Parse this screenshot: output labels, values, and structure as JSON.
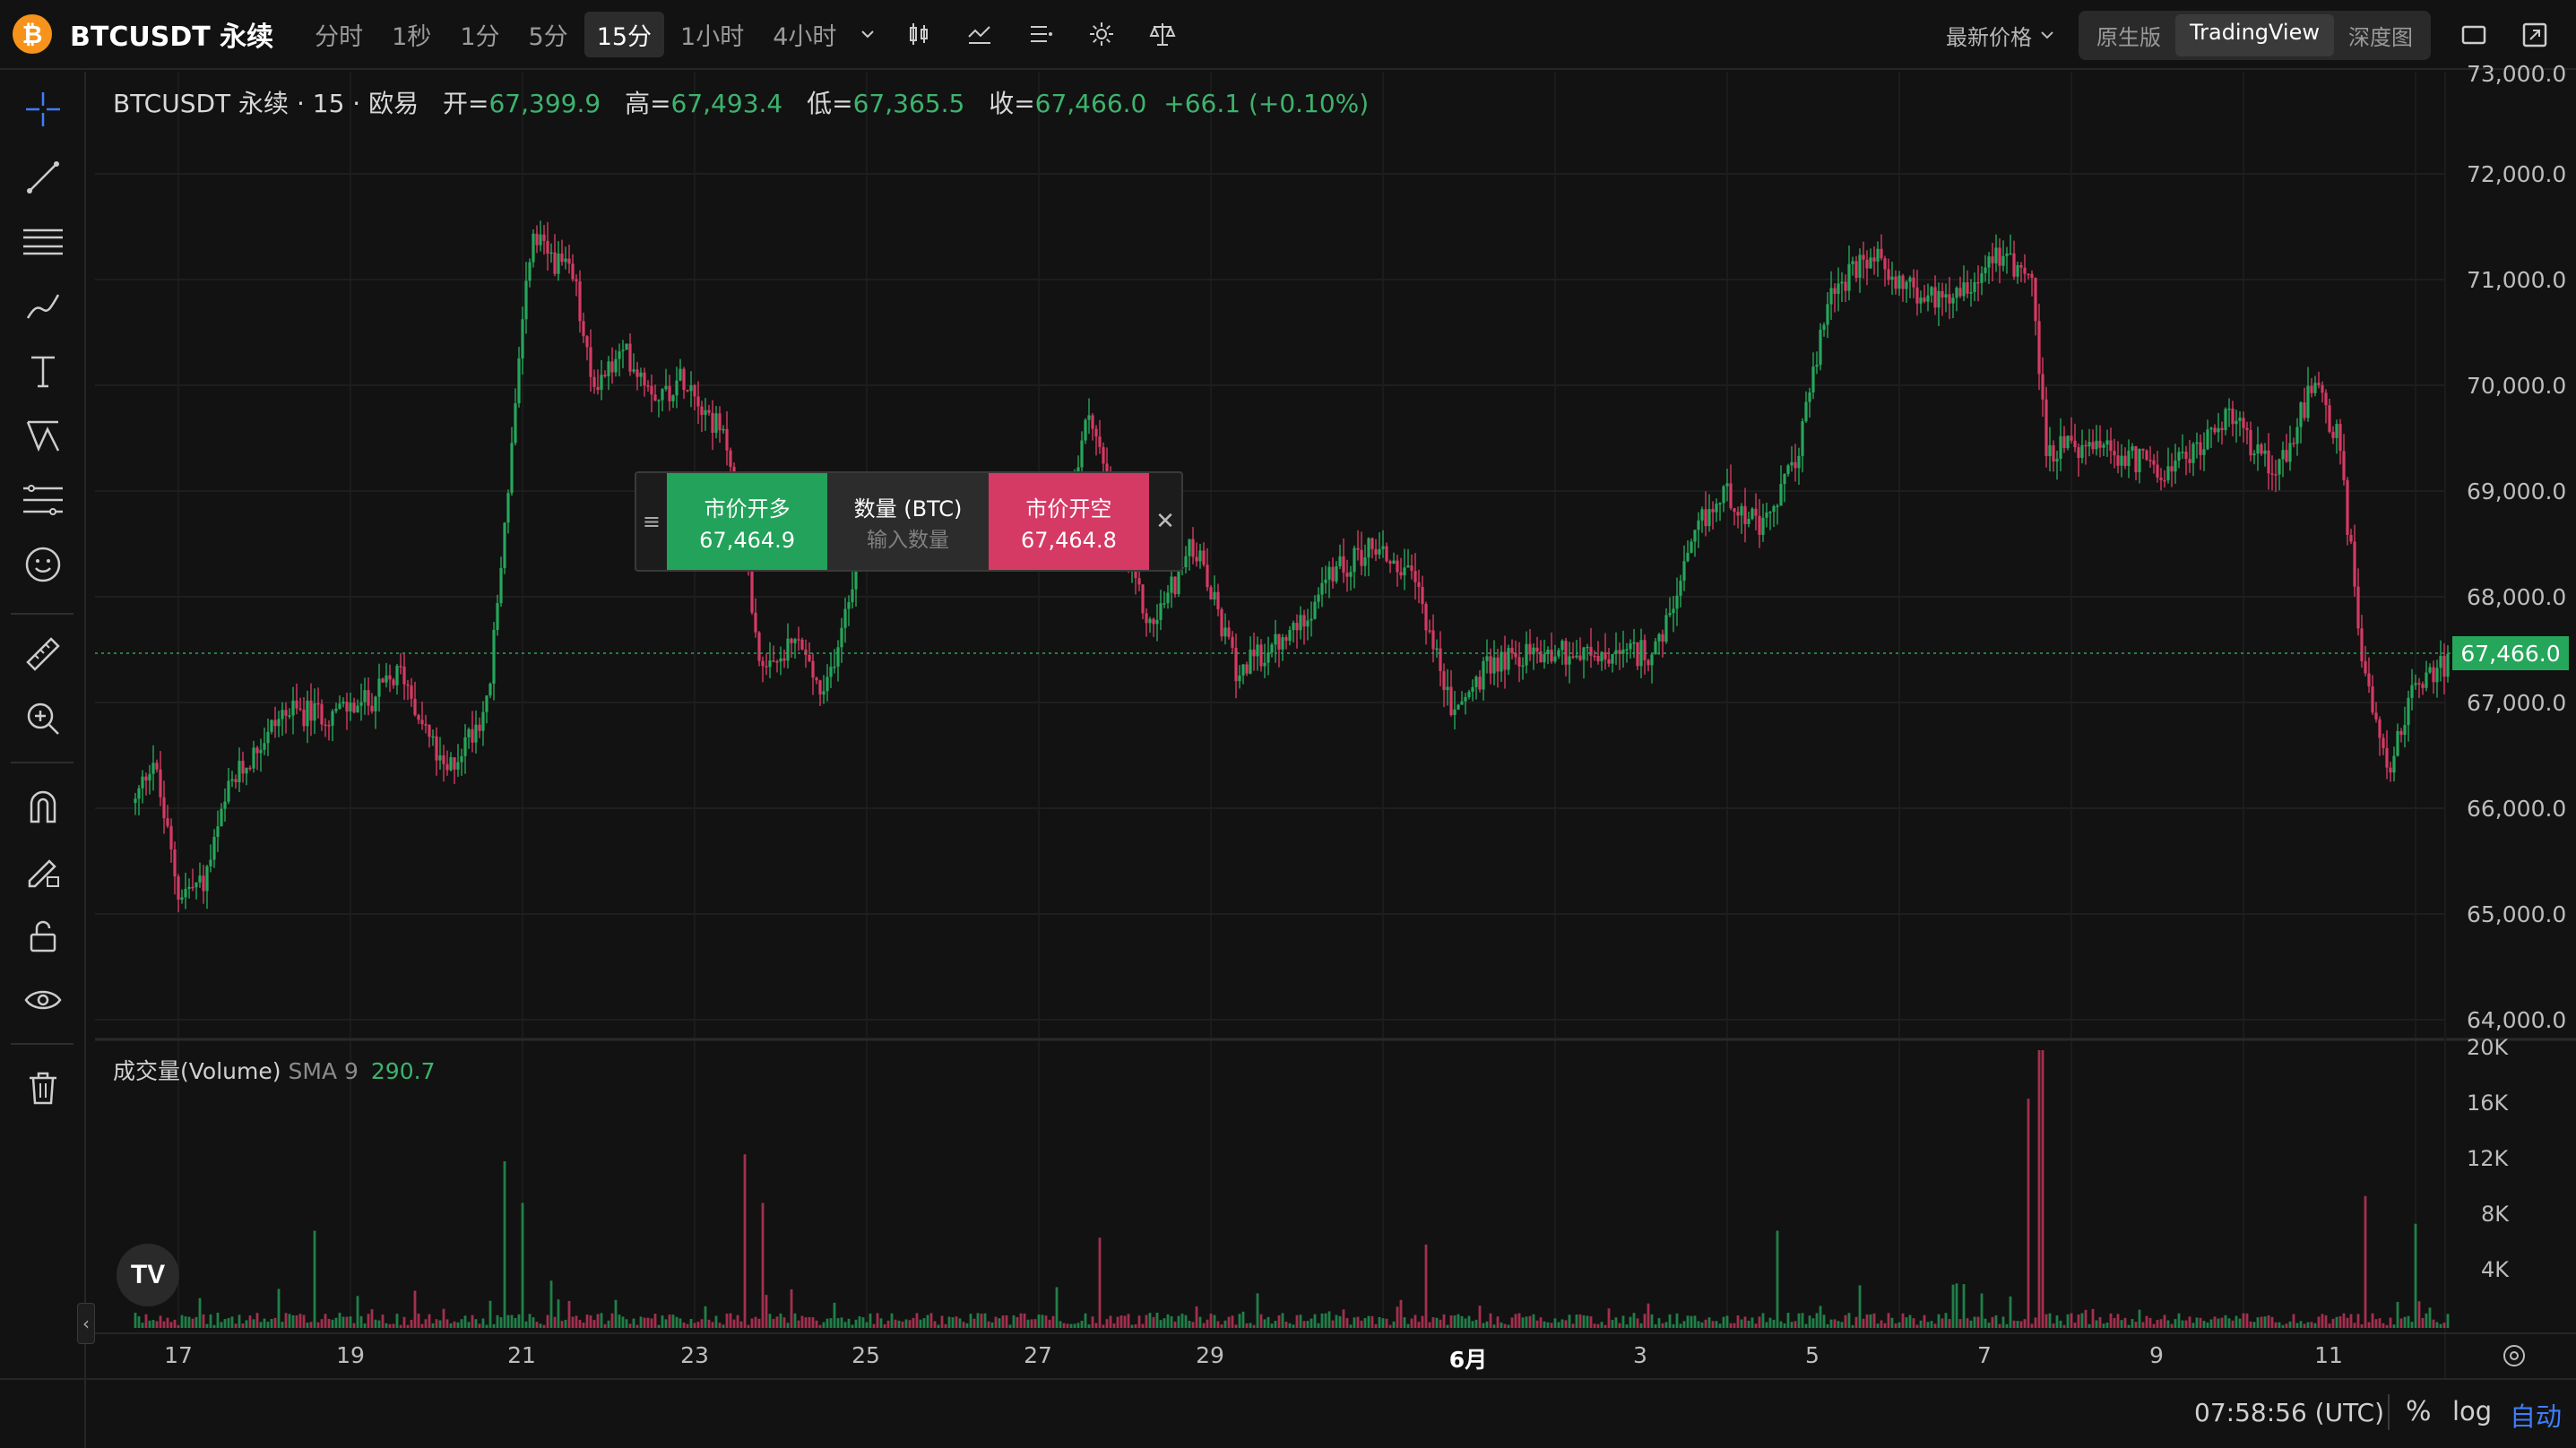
{
  "header": {
    "coin_glyph": "₿",
    "symbol": "BTCUSDT 永续",
    "intervals": [
      "分时",
      "1秒",
      "1分",
      "5分",
      "15分",
      "1小时",
      "4小时"
    ],
    "active_interval": "15分",
    "last_price_label": "最新价格",
    "views": [
      "原生版",
      "TradingView",
      "深度图"
    ],
    "active_view": "TradingView"
  },
  "legend": {
    "title": "BTCUSDT 永续 · 15 · 欧易",
    "open_label": "开=",
    "open": "67,399.9",
    "high_label": "高=",
    "high": "67,493.4",
    "low_label": "低=",
    "low": "67,365.5",
    "close_label": "收=",
    "close": "67,466.0",
    "change": "+66.1 (+0.10%)"
  },
  "order_panel": {
    "buy_label": "市价开多",
    "buy_price": "67,464.9",
    "qty_label": "数量 (BTC)",
    "qty_placeholder": "输入数量",
    "sell_label": "市价开空",
    "sell_price": "67,464.8"
  },
  "price_axis": {
    "labels": [
      "73,000.0",
      "72,000.0",
      "71,000.0",
      "70,000.0",
      "69,000.0",
      "68,000.0",
      "67,000.0",
      "66,000.0",
      "65,000.0",
      "64,000.0"
    ],
    "current_price": "67,466.0"
  },
  "volume": {
    "title": "成交量(Volume)",
    "sma_label": "SMA 9",
    "sma_value": "290.7",
    "axis_labels": [
      "20K",
      "16K",
      "12K",
      "8K",
      "4K"
    ]
  },
  "time_axis": {
    "labels": [
      "17",
      "19",
      "21",
      "23",
      "25",
      "27",
      "29",
      "6月",
      "3",
      "5",
      "7",
      "9",
      "11"
    ],
    "bold_label": "6月"
  },
  "footer": {
    "clock": "07:58:56 (UTC)",
    "percent": "%",
    "log": "log",
    "auto": "自动"
  },
  "chart_data": {
    "type": "candlestick",
    "timeframe": "15m",
    "x": [
      "17",
      "19",
      "21",
      "23",
      "25",
      "27",
      "29",
      "6月",
      "3",
      "5",
      "7",
      "9",
      "11"
    ],
    "price_anchors": [
      {
        "day": 16.5,
        "price": 66050
      },
      {
        "day": 16.7,
        "price": 66500
      },
      {
        "day": 17.0,
        "price": 65200
      },
      {
        "day": 17.3,
        "price": 65300
      },
      {
        "day": 17.6,
        "price": 66200
      },
      {
        "day": 18.2,
        "price": 66900
      },
      {
        "day": 18.8,
        "price": 66900
      },
      {
        "day": 19.2,
        "price": 67000
      },
      {
        "day": 19.6,
        "price": 67300
      },
      {
        "day": 20.1,
        "price": 66300
      },
      {
        "day": 20.6,
        "price": 67000
      },
      {
        "day": 21.1,
        "price": 71400
      },
      {
        "day": 21.6,
        "price": 71000
      },
      {
        "day": 21.8,
        "price": 70000
      },
      {
        "day": 22.2,
        "price": 70300
      },
      {
        "day": 22.6,
        "price": 69900
      },
      {
        "day": 22.9,
        "price": 70100
      },
      {
        "day": 23.4,
        "price": 69400
      },
      {
        "day": 23.8,
        "price": 67200
      },
      {
        "day": 24.2,
        "price": 67600
      },
      {
        "day": 24.5,
        "price": 67000
      },
      {
        "day": 25.0,
        "price": 68800
      },
      {
        "day": 25.8,
        "price": 68700
      },
      {
        "day": 26.6,
        "price": 68600
      },
      {
        "day": 27.3,
        "price": 68700
      },
      {
        "day": 27.6,
        "price": 69800
      },
      {
        "day": 27.9,
        "price": 68600
      },
      {
        "day": 28.3,
        "price": 67700
      },
      {
        "day": 28.8,
        "price": 68500
      },
      {
        "day": 29.3,
        "price": 67300
      },
      {
        "day": 29.9,
        "price": 67600
      },
      {
        "day": 30.4,
        "price": 68200
      },
      {
        "day": 30.9,
        "price": 68500
      },
      {
        "day": 31.4,
        "price": 68100
      },
      {
        "day": 31.8,
        "price": 66900
      },
      {
        "day": 32.3,
        "price": 67400
      },
      {
        "day": 33.0,
        "price": 67500
      },
      {
        "day": 33.6,
        "price": 67400
      },
      {
        "day": 34.2,
        "price": 67500
      },
      {
        "day": 34.7,
        "price": 68700
      },
      {
        "day": 35.0,
        "price": 69000
      },
      {
        "day": 35.4,
        "price": 68600
      },
      {
        "day": 35.8,
        "price": 69300
      },
      {
        "day": 36.2,
        "price": 70900
      },
      {
        "day": 36.7,
        "price": 71200
      },
      {
        "day": 37.3,
        "price": 70800
      },
      {
        "day": 37.9,
        "price": 71000
      },
      {
        "day": 38.1,
        "price": 71300
      },
      {
        "day": 38.55,
        "price": 71000
      },
      {
        "day": 38.7,
        "price": 69400
      },
      {
        "day": 39.2,
        "price": 69400
      },
      {
        "day": 40.2,
        "price": 69200
      },
      {
        "day": 40.8,
        "price": 69700
      },
      {
        "day": 41.4,
        "price": 69200
      },
      {
        "day": 41.8,
        "price": 70000
      },
      {
        "day": 42.1,
        "price": 69500
      },
      {
        "day": 42.4,
        "price": 67300
      },
      {
        "day": 42.7,
        "price": 66400
      },
      {
        "day": 43.0,
        "price": 67200
      },
      {
        "day": 43.4,
        "price": 67400
      }
    ],
    "y_range": [
      63800,
      73100
    ],
    "current_price": 67466,
    "volume_y_range": [
      0,
      20000
    ],
    "volume_spikes": [
      {
        "day": 18.6,
        "value": 7000
      },
      {
        "day": 20.8,
        "value": 12000
      },
      {
        "day": 21.0,
        "value": 9000
      },
      {
        "day": 23.6,
        "value": 12500
      },
      {
        "day": 23.8,
        "value": 9000
      },
      {
        "day": 27.7,
        "value": 6500
      },
      {
        "day": 31.5,
        "value": 6000
      },
      {
        "day": 35.6,
        "value": 7000
      },
      {
        "day": 38.5,
        "value": 16500
      },
      {
        "day": 38.65,
        "value": 20000
      },
      {
        "day": 42.4,
        "value": 9500
      },
      {
        "day": 43.0,
        "value": 7500
      }
    ],
    "colors": {
      "up": "#26a65b",
      "down": "#d53a64"
    },
    "grid": true
  }
}
